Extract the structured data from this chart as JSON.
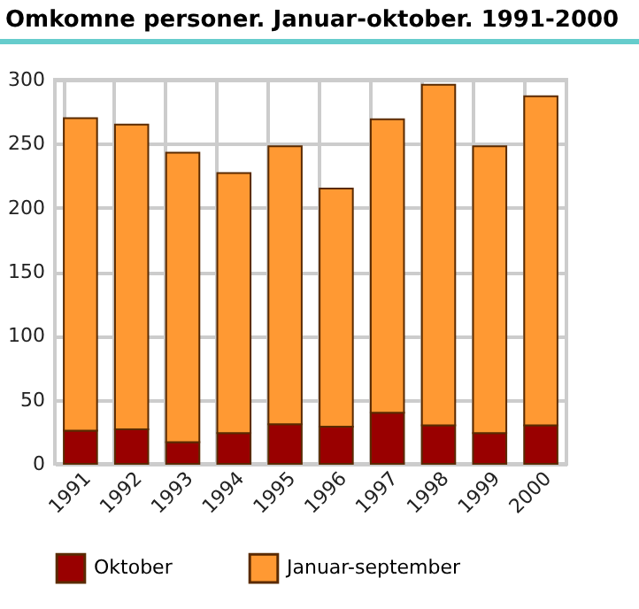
{
  "chart_data": {
    "type": "bar",
    "title": "Omkomne personer. Januar-oktober. 1991-2000",
    "categories": [
      "1991",
      "1992",
      "1993",
      "1994",
      "1995",
      "1996",
      "1997",
      "1998",
      "1999",
      "2000"
    ],
    "series": [
      {
        "name": "Oktober",
        "color": "#990000",
        "values": [
          26,
          27,
          17,
          24,
          31,
          29,
          40,
          30,
          24,
          30
        ]
      },
      {
        "name": "Januar-september",
        "color": "#ff9933",
        "values": [
          244,
          238,
          226,
          203,
          217,
          186,
          229,
          266,
          224,
          257
        ]
      }
    ],
    "stacked": true,
    "ylim": [
      0,
      300
    ],
    "yticks": [
      0,
      50,
      100,
      150,
      200,
      250,
      300
    ],
    "grid": true,
    "legend": "bottom"
  }
}
